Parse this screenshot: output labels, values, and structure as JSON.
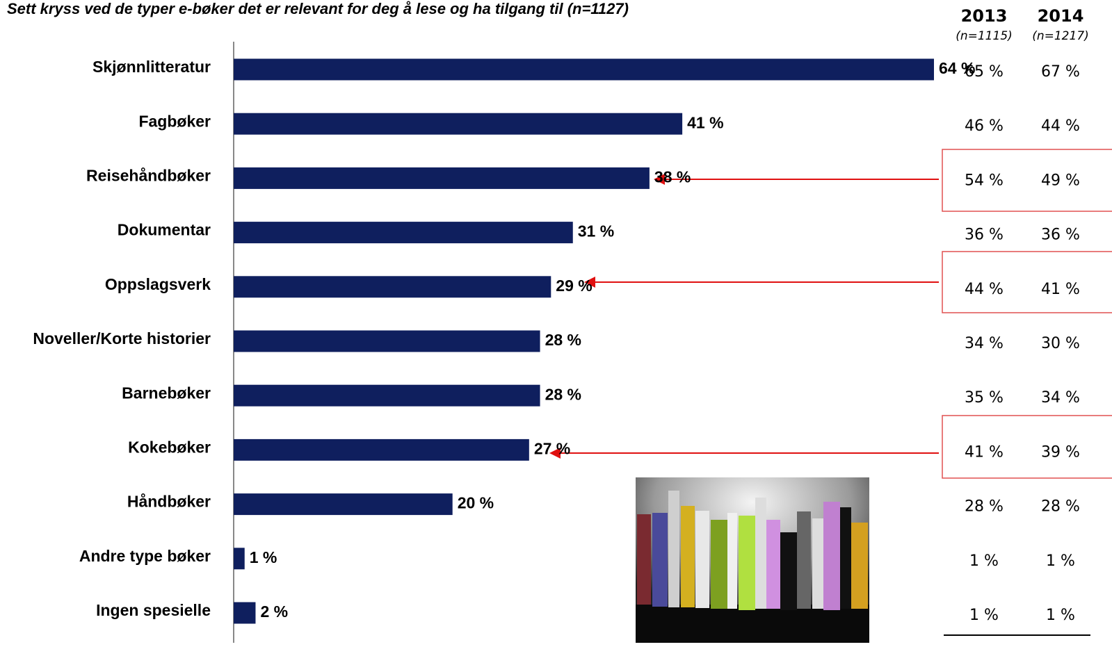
{
  "chart_data": {
    "type": "bar",
    "orientation": "horizontal",
    "title": "Sett kryss ved de typer e-bøker det er relevant for deg å lese og ha tilgang til (n=1127)",
    "categories": [
      "Skjønnlitteratur",
      "Fagbøker",
      "Reisehåndbøker",
      "Dokumentar",
      "Oppslagsverk",
      "Noveller/Korte historier",
      "Barnebøker",
      "Kokebøker",
      "Håndbøker",
      "Andre type bøker",
      "Ingen spesielle"
    ],
    "values": [
      64,
      41,
      38,
      31,
      29,
      28,
      28,
      27,
      20,
      1,
      2
    ],
    "value_labels": [
      "64 %",
      "41 %",
      "38 %",
      "31 %",
      "29 %",
      "28 %",
      "28 %",
      "27 %",
      "20 %",
      "1 %",
      "2 %"
    ],
    "color": "#0f1f5e"
  },
  "table": {
    "columns": [
      {
        "year": "2013",
        "n": "(n=1115)"
      },
      {
        "year": "2014",
        "n": "(n=1217)"
      }
    ],
    "rows": [
      [
        "65 %",
        "67 %"
      ],
      [
        "46 %",
        "44 %"
      ],
      [
        "54 %",
        "49 %"
      ],
      [
        "36 %",
        "36 %"
      ],
      [
        "44 %",
        "41 %"
      ],
      [
        "34 %",
        "30 %"
      ],
      [
        "35 %",
        "34 %"
      ],
      [
        "41 %",
        "39 %"
      ],
      [
        "28 %",
        "28 %"
      ],
      [
        "1 %",
        "1 %"
      ],
      [
        "1 %",
        "1 %"
      ]
    ]
  }
}
